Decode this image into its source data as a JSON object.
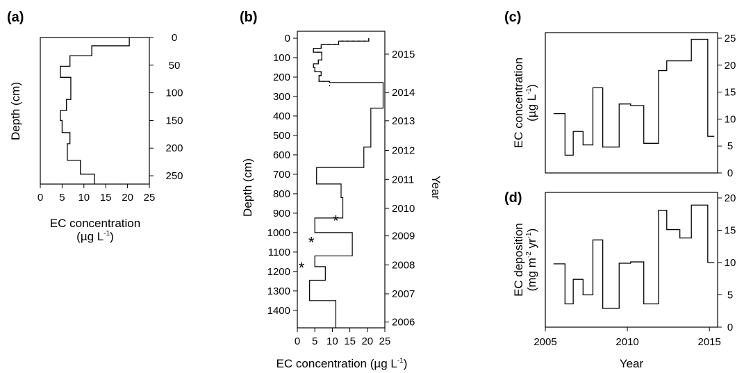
{
  "chart_data": [
    {
      "panel_label": "(a)",
      "type": "line",
      "style": "step",
      "xlabel": "EC concentration",
      "xlabel_unit": "(µg L",
      "xlabel_unit_sup": "-1",
      "xlabel_unit_close": ")",
      "ylabel": "Depth (cm)",
      "xlim": [
        0,
        25
      ],
      "ylim": [
        0,
        265
      ],
      "y_inverted": true,
      "x_axis_position": "bottom",
      "y_axis_position": "right",
      "xticks": [
        0,
        5,
        10,
        15,
        20,
        25
      ],
      "yticks": [
        0,
        50,
        100,
        150,
        200,
        250
      ],
      "series": [
        {
          "line_style": "solid",
          "steps": [
            {
              "top": 0,
              "bottom": 15,
              "x": 20.4
            },
            {
              "top": 15,
              "bottom": 33,
              "x": 11.8
            },
            {
              "top": 33,
              "bottom": 52,
              "x": 6.8
            },
            {
              "top": 52,
              "bottom": 72,
              "x": 4.6
            },
            {
              "top": 72,
              "bottom": 112,
              "x": 7.0
            },
            {
              "top": 112,
              "bottom": 132,
              "x": 6.0
            },
            {
              "top": 132,
              "bottom": 150,
              "x": 4.6
            },
            {
              "top": 150,
              "bottom": 172,
              "x": 5.0
            },
            {
              "top": 172,
              "bottom": 192,
              "x": 6.8
            },
            {
              "top": 192,
              "bottom": 222,
              "x": 6.2
            },
            {
              "top": 222,
              "bottom": 247,
              "x": 9.2
            },
            {
              "top": 247,
              "bottom": 265,
              "x": 12.4
            }
          ]
        }
      ]
    },
    {
      "panel_label": "(b)",
      "type": "line",
      "style": "step",
      "xlabel": "EC concentration",
      "xlabel_unit": "(µg L",
      "xlabel_unit_sup": "-1",
      "xlabel_unit_close": ")",
      "ylabel": "Depth (cm)",
      "right_label": "Year",
      "xlim": [
        0,
        25
      ],
      "ylim": [
        0,
        1490
      ],
      "y_inverted": true,
      "xticks": [
        0,
        5,
        10,
        15,
        20,
        25
      ],
      "yticks": [
        0,
        100,
        200,
        300,
        400,
        500,
        600,
        700,
        800,
        900,
        1000,
        1100,
        1200,
        1300,
        1400
      ],
      "year_ticks": [
        {
          "label": "2015",
          "depth": 110
        },
        {
          "label": "2014",
          "depth": 375
        },
        {
          "label": "2013",
          "depth": 570
        },
        {
          "label": "2012",
          "depth": 775
        },
        {
          "label": "2011",
          "depth": 975
        },
        {
          "label": "2010",
          "depth": 1175
        },
        {
          "label": "2009",
          "depth": 1365
        },
        {
          "label": "2008",
          "depth": 1565
        },
        {
          "label": "2007",
          "depth": 1765
        },
        {
          "label": "2006",
          "depth": 1960
        }
      ],
      "series": [
        {
          "line_style": "solid",
          "steps": [
            {
              "top": 0,
              "bottom": 15,
              "x": 20.4
            },
            {
              "top": 15,
              "bottom": 33,
              "x": 11.8
            },
            {
              "top": 33,
              "bottom": 52,
              "x": 6.8
            },
            {
              "top": 52,
              "bottom": 72,
              "x": 4.6
            },
            {
              "top": 72,
              "bottom": 112,
              "x": 7.0
            },
            {
              "top": 112,
              "bottom": 132,
              "x": 6.0
            },
            {
              "top": 132,
              "bottom": 150,
              "x": 4.6
            },
            {
              "top": 150,
              "bottom": 172,
              "x": 5.0
            },
            {
              "top": 172,
              "bottom": 192,
              "x": 6.8
            },
            {
              "top": 192,
              "bottom": 222,
              "x": 6.2
            },
            {
              "top": 222,
              "bottom": 228,
              "x": 9.2
            },
            {
              "top": 228,
              "bottom": 360,
              "x": 24.5
            },
            {
              "top": 360,
              "bottom": 560,
              "x": 21.0
            },
            {
              "top": 560,
              "bottom": 665,
              "x": 19.0
            },
            {
              "top": 665,
              "bottom": 750,
              "x": 5.5
            },
            {
              "top": 750,
              "bottom": 820,
              "x": 12.5
            },
            {
              "top": 820,
              "bottom": 925,
              "x": 13.0
            },
            {
              "top": 925,
              "bottom": 1000,
              "x": 5.0
            },
            {
              "top": 1000,
              "bottom": 1120,
              "x": 15.7
            },
            {
              "top": 1120,
              "bottom": 1175,
              "x": 5.0
            },
            {
              "top": 1175,
              "bottom": 1245,
              "x": 8.0
            },
            {
              "top": 1245,
              "bottom": 1350,
              "x": 3.5
            },
            {
              "top": 1350,
              "bottom": 1490,
              "x": 11.0
            }
          ]
        },
        {
          "line_style": "dashed",
          "steps": [
            {
              "top": 0,
              "bottom": 15,
              "x": 20.4
            },
            {
              "top": 15,
              "bottom": 33,
              "x": 11.8
            },
            {
              "top": 33,
              "bottom": 52,
              "x": 6.8
            },
            {
              "top": 52,
              "bottom": 72,
              "x": 4.6
            },
            {
              "top": 72,
              "bottom": 112,
              "x": 7.0
            },
            {
              "top": 112,
              "bottom": 132,
              "x": 6.0
            },
            {
              "top": 132,
              "bottom": 150,
              "x": 4.6
            },
            {
              "top": 150,
              "bottom": 172,
              "x": 5.0
            },
            {
              "top": 172,
              "bottom": 192,
              "x": 6.8
            },
            {
              "top": 192,
              "bottom": 222,
              "x": 6.2
            },
            {
              "top": 222,
              "bottom": 247,
              "x": 9.2
            }
          ]
        }
      ],
      "markers": [
        {
          "symbol": "*",
          "color": "#1a1aff",
          "x": 11.0,
          "y": 935
        },
        {
          "symbol": "*",
          "color": "#1a1aff",
          "x": 4.0,
          "y": 1045
        },
        {
          "symbol": "*",
          "color": "#1a1aff",
          "x": 1.2,
          "y": 1175
        }
      ]
    },
    {
      "panel_label": "(c)",
      "type": "line",
      "style": "step",
      "ylabel": "EC concentration",
      "ylabel_unit": "(µg L",
      "ylabel_unit_sup": "-1",
      "ylabel_unit_close": ")",
      "xlim": [
        2005,
        2015.5
      ],
      "ylim": [
        0,
        25
      ],
      "y_axis_position": "right",
      "yticks": [
        0,
        5,
        10,
        15,
        20,
        25
      ],
      "series": [
        {
          "line_style": "solid",
          "steps": [
            {
              "start": 2005.5,
              "end": 2006.2,
              "y": 11.0
            },
            {
              "start": 2006.2,
              "end": 2006.7,
              "y": 3.3
            },
            {
              "start": 2006.7,
              "end": 2007.3,
              "y": 7.7
            },
            {
              "start": 2007.3,
              "end": 2007.9,
              "y": 5.2
            },
            {
              "start": 2007.9,
              "end": 2008.5,
              "y": 15.8
            },
            {
              "start": 2008.5,
              "end": 2009.5,
              "y": 4.8
            },
            {
              "start": 2009.5,
              "end": 2010.2,
              "y": 12.8
            },
            {
              "start": 2010.2,
              "end": 2011.0,
              "y": 12.5
            },
            {
              "start": 2011.0,
              "end": 2011.9,
              "y": 5.5
            },
            {
              "start": 2011.9,
              "end": 2012.4,
              "y": 19.0
            },
            {
              "start": 2012.4,
              "end": 2013.9,
              "y": 20.8
            },
            {
              "start": 2013.9,
              "end": 2014.9,
              "y": 24.8
            },
            {
              "start": 2014.9,
              "end": 2015.3,
              "y": 6.8
            }
          ]
        }
      ]
    },
    {
      "panel_label": "(d)",
      "type": "line",
      "style": "step",
      "xlabel": "Year",
      "ylabel": "EC deposition",
      "ylabel_unit": "(mg m",
      "ylabel_unit_sup": "-2",
      "ylabel_unit_mid": " yr",
      "ylabel_unit_sup2": "-1",
      "ylabel_unit_close": ")",
      "xlim": [
        2005,
        2015.5
      ],
      "ylim": [
        0,
        20
      ],
      "y_axis_position": "right",
      "xticks": [
        2005,
        2010,
        2015
      ],
      "yticks": [
        0,
        5,
        10,
        15,
        20
      ],
      "series": [
        {
          "line_style": "solid",
          "steps": [
            {
              "start": 2005.5,
              "end": 2006.2,
              "y": 9.8
            },
            {
              "start": 2006.2,
              "end": 2006.7,
              "y": 3.6
            },
            {
              "start": 2006.7,
              "end": 2007.3,
              "y": 7.4
            },
            {
              "start": 2007.3,
              "end": 2007.9,
              "y": 5.0
            },
            {
              "start": 2007.9,
              "end": 2008.5,
              "y": 13.5
            },
            {
              "start": 2008.5,
              "end": 2009.5,
              "y": 2.9
            },
            {
              "start": 2009.5,
              "end": 2010.2,
              "y": 9.9
            },
            {
              "start": 2010.2,
              "end": 2011.0,
              "y": 10.1
            },
            {
              "start": 2011.0,
              "end": 2011.9,
              "y": 3.6
            },
            {
              "start": 2011.9,
              "end": 2012.4,
              "y": 18.1
            },
            {
              "start": 2012.4,
              "end": 2013.2,
              "y": 15.1
            },
            {
              "start": 2013.2,
              "end": 2013.9,
              "y": 13.8
            },
            {
              "start": 2013.9,
              "end": 2014.9,
              "y": 18.9
            },
            {
              "start": 2014.9,
              "end": 2015.3,
              "y": 10.0
            }
          ]
        }
      ]
    }
  ]
}
